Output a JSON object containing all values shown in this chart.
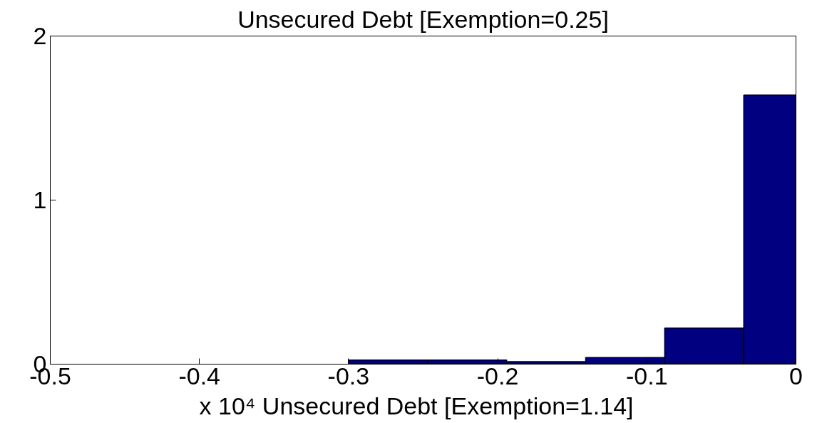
{
  "chart_data": {
    "type": "histogram",
    "title": "Unsecured Debt [Exemption=0.25]",
    "bins": [
      -0.3,
      -0.247,
      -0.194,
      -0.141,
      -0.088,
      -0.035,
      0
    ],
    "values": [
      0.025,
      0.025,
      0.015,
      0.04,
      0.22,
      1.64
    ],
    "color": "#000080",
    "xlim": [
      -0.5,
      0
    ],
    "xticks": [
      -0.5,
      -0.4,
      -0.3,
      -0.2,
      -0.1,
      0
    ],
    "ylim": [
      0,
      2
    ],
    "yticks": [
      0,
      1,
      2
    ],
    "annotations": [
      "x 10⁴",
      "Unsecured Debt [Exemption=1.14]"
    ]
  }
}
